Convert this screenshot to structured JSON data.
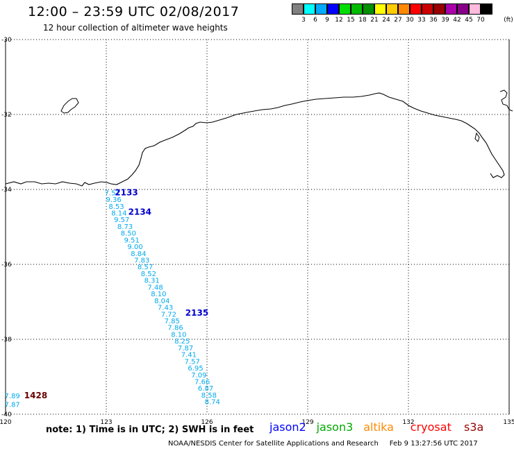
{
  "header": {
    "title": "12:00 – 23:59 UTC 02/08/2017",
    "subtitle": "12 hour collection of altimeter wave heights"
  },
  "color_scale": {
    "colors": [
      "#808080",
      "#00ffff",
      "#00aaff",
      "#0000ff",
      "#00dd00",
      "#00bb00",
      "#009000",
      "#ffff00",
      "#ffcc00",
      "#ff8800",
      "#ff0000",
      "#cc0000",
      "#990000",
      "#aa00aa",
      "#880088",
      "#ffbbdd",
      "#000000"
    ],
    "labels": [
      "3",
      "6",
      "9",
      "12",
      "15",
      "18",
      "21",
      "24",
      "27",
      "30",
      "33",
      "36",
      "39",
      "42",
      "45",
      "70"
    ],
    "unit": "(ft)"
  },
  "map": {
    "lat_labels": [
      "-30",
      "-32",
      "-34",
      "-36",
      "-38",
      "-40"
    ],
    "lon_labels": [
      "120",
      "123",
      "126",
      "129",
      "132",
      "135"
    ],
    "track_color": "#00aaee",
    "points": [
      {
        "text": "7.51",
        "lon": 123.18,
        "lat": -34.08
      },
      {
        "text": "9.36",
        "lon": 123.22,
        "lat": -34.26
      },
      {
        "text": "8.53",
        "lon": 123.3,
        "lat": -34.44
      },
      {
        "text": "8.14",
        "lon": 123.38,
        "lat": -34.62
      },
      {
        "text": "9.57",
        "lon": 123.46,
        "lat": -34.8
      },
      {
        "text": "8.73",
        "lon": 123.56,
        "lat": -34.98
      },
      {
        "text": "8.50",
        "lon": 123.66,
        "lat": -35.16
      },
      {
        "text": "9.51",
        "lon": 123.76,
        "lat": -35.34
      },
      {
        "text": "9.00",
        "lon": 123.86,
        "lat": -35.52
      },
      {
        "text": "8.84",
        "lon": 123.96,
        "lat": -35.7
      },
      {
        "text": "7.83",
        "lon": 124.06,
        "lat": -35.88
      },
      {
        "text": "8.57",
        "lon": 124.16,
        "lat": -36.06
      },
      {
        "text": "8.52",
        "lon": 124.26,
        "lat": -36.24
      },
      {
        "text": "8.31",
        "lon": 124.36,
        "lat": -36.42
      },
      {
        "text": "7.48",
        "lon": 124.46,
        "lat": -36.6
      },
      {
        "text": "8.10",
        "lon": 124.56,
        "lat": -36.78
      },
      {
        "text": "8.04",
        "lon": 124.66,
        "lat": -36.96
      },
      {
        "text": "7.43",
        "lon": 124.76,
        "lat": -37.14
      },
      {
        "text": "7.72",
        "lon": 124.86,
        "lat": -37.32
      },
      {
        "text": "7.85",
        "lon": 124.96,
        "lat": -37.5
      },
      {
        "text": "7.86",
        "lon": 125.06,
        "lat": -37.68
      },
      {
        "text": "8.10",
        "lon": 125.16,
        "lat": -37.86
      },
      {
        "text": "8.25",
        "lon": 125.26,
        "lat": -38.04
      },
      {
        "text": "7.87",
        "lon": 125.36,
        "lat": -38.22
      },
      {
        "text": "7.41",
        "lon": 125.46,
        "lat": -38.4
      },
      {
        "text": "7.57",
        "lon": 125.56,
        "lat": -38.58
      },
      {
        "text": "6.95",
        "lon": 125.66,
        "lat": -38.76
      },
      {
        "text": "7.09",
        "lon": 125.76,
        "lat": -38.94
      },
      {
        "text": "7.66",
        "lon": 125.86,
        "lat": -39.12
      },
      {
        "text": "6.87",
        "lon": 125.96,
        "lat": -39.3
      },
      {
        "text": "8.58",
        "lon": 126.06,
        "lat": -39.48
      },
      {
        "text": "8.74",
        "lon": 126.16,
        "lat": -39.66
      },
      {
        "text": "7.89",
        "lon": 120.2,
        "lat": -39.5
      },
      {
        "text": "7.87",
        "lon": 120.2,
        "lat": -39.73
      }
    ],
    "pass_labels": [
      {
        "text": "2133",
        "lon": 123.6,
        "lat": -34.08,
        "color": "#0000cc"
      },
      {
        "text": "2134",
        "lon": 124.0,
        "lat": -34.6,
        "color": "#0000cc"
      },
      {
        "text": "2135",
        "lon": 125.7,
        "lat": -37.3,
        "color": "#0000cc"
      },
      {
        "text": "1428",
        "lon": 120.9,
        "lat": -39.5,
        "color": "#660000"
      }
    ]
  },
  "footer": {
    "note": "note: 1) Time is in UTC; 2) SWH is in feet",
    "credit": "NOAA/NESDIS Center for Satellite Applications and Research",
    "timestamp": "Feb  9 13:27:56 UTC 2017"
  },
  "legend": [
    {
      "name": "jason2",
      "color": "#0000ff"
    },
    {
      "name": "jason3",
      "color": "#00aa00"
    },
    {
      "name": "altika",
      "color": "#ff8800"
    },
    {
      "name": "cryosat",
      "color": "#ff0000"
    },
    {
      "name": "s3a",
      "color": "#990000"
    }
  ]
}
